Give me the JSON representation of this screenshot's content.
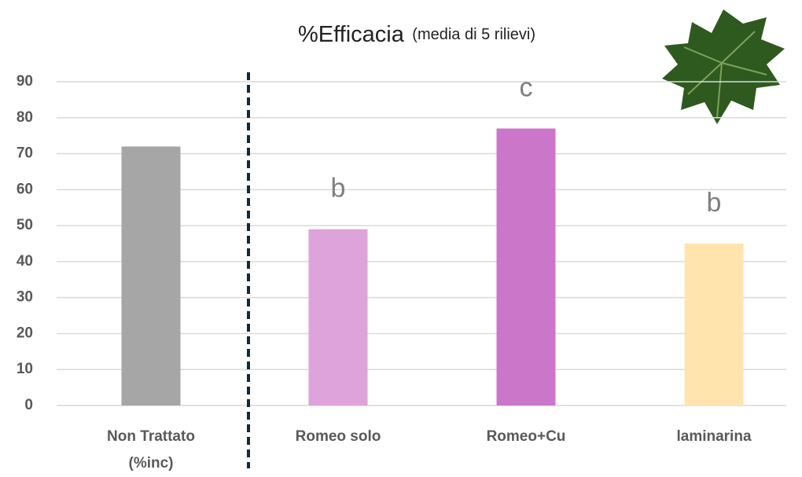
{
  "chart_data": {
    "type": "bar",
    "title": "%Efficacia",
    "subtitle": "(media di 5 rilievi)",
    "categories": [
      [
        "Non Trattato",
        "(%inc)"
      ],
      [
        "Romeo solo"
      ],
      [
        "Romeo+Cu"
      ],
      [
        "laminarina"
      ]
    ],
    "values": [
      72,
      49,
      77,
      45
    ],
    "colors": [
      "#a6a6a6",
      "#dfa3dc",
      "#cc76c9",
      "#ffe4ae"
    ],
    "significance_letters": [
      null,
      "b",
      "c",
      "b"
    ],
    "ylim": [
      0,
      90
    ],
    "yticks": [
      0,
      10,
      20,
      30,
      40,
      50,
      60,
      70,
      80,
      90
    ],
    "grid": true
  }
}
